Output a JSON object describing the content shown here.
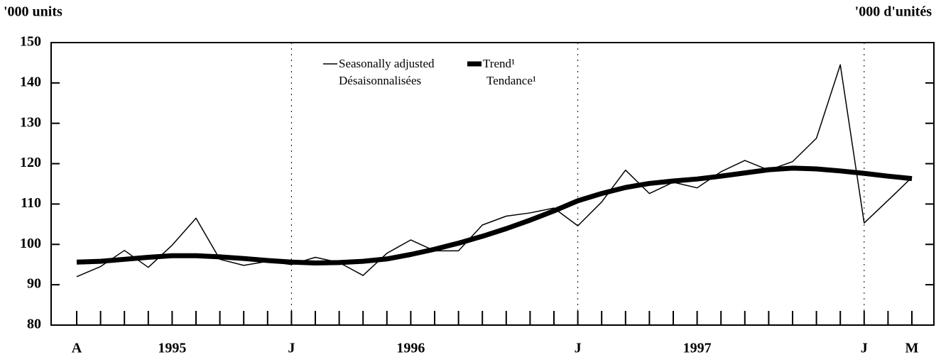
{
  "chart_data": {
    "type": "line",
    "y_label_left": "'000 units",
    "y_label_right": "'000 d'unités",
    "categories": [
      "A",
      null,
      null,
      null,
      "1995",
      null,
      null,
      null,
      null,
      "J",
      null,
      null,
      null,
      null,
      "1996",
      null,
      null,
      null,
      null,
      null,
      null,
      "J",
      null,
      null,
      null,
      null,
      "1997",
      null,
      null,
      null,
      null,
      null,
      null,
      "J",
      null,
      "M"
    ],
    "series": [
      {
        "name": "Seasonally adjusted",
        "name_fr": "Désaisonnalisées",
        "color": "#000000",
        "width": 1.5,
        "values": [
          92,
          94.5,
          98.5,
          94.3,
          99.8,
          106.5,
          96.3,
          94.8,
          95.8,
          95,
          96.8,
          95.5,
          92.3,
          97.8,
          101.1,
          98.4,
          98.4,
          104.8,
          107,
          107.8,
          109,
          104.6,
          110.5,
          118.4,
          112.6,
          115.4,
          114,
          118,
          120.8,
          118.4,
          120.5,
          126.3,
          144.5,
          105.3,
          110.9,
          116.6
        ]
      },
      {
        "name": "Trend¹",
        "name_fr": "Tendance¹",
        "color": "#000000",
        "width": 7,
        "values": [
          95.6,
          95.8,
          96.3,
          96.8,
          97.2,
          97.2,
          96.9,
          96.5,
          96.0,
          95.6,
          95.4,
          95.5,
          95.8,
          96.4,
          97.5,
          98.8,
          100.3,
          102.0,
          103.9,
          106.0,
          108.3,
          110.8,
          112.6,
          114.1,
          115.1,
          115.7,
          116.2,
          116.9,
          117.7,
          118.5,
          118.9,
          118.7,
          118.2,
          117.6,
          116.9,
          116.3
        ]
      }
    ],
    "ylim": [
      80,
      150
    ],
    "yticks": [
      80,
      90,
      100,
      110,
      120,
      130,
      140,
      150
    ]
  }
}
